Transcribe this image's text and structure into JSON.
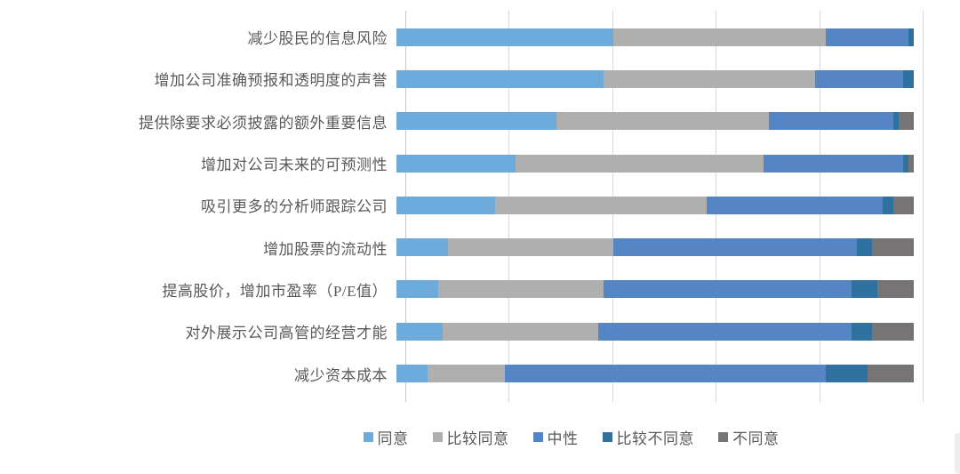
{
  "chart_data": {
    "type": "bar",
    "subtype": "horizontal-stacked-100",
    "title": "",
    "xlabel": "",
    "ylabel": "",
    "xlim": [
      0,
      100
    ],
    "gridline_interval": 20,
    "grid": true,
    "legend_position": "bottom",
    "categories": [
      "减少股民的信息风险",
      "增加公司准确预报和透明度的声誉",
      "提供除要求必须披露的额外重要信息",
      "增加对公司未来的可预测性",
      "吸引更多的分析师跟踪公司",
      "增加股票的流动性",
      "提高股价，增加市盈率（P/E值）",
      "对外展示公司高管的经营才能",
      "减少资本成本"
    ],
    "series": [
      {
        "name": "同意",
        "color": "#6cabdb",
        "values": [
          42,
          40,
          31,
          23,
          19,
          10,
          8,
          9,
          6
        ]
      },
      {
        "name": "比较同意",
        "color": "#afafaf",
        "values": [
          41,
          41,
          41,
          48,
          41,
          32,
          32,
          30,
          15
        ]
      },
      {
        "name": "中性",
        "color": "#5585c5",
        "values": [
          16,
          17,
          24,
          27,
          34,
          47,
          48,
          49,
          62
        ]
      },
      {
        "name": "比较不同意",
        "color": "#2f719f",
        "values": [
          1,
          2,
          1,
          1,
          2,
          3,
          5,
          4,
          8
        ]
      },
      {
        "name": "不同意",
        "color": "#767474",
        "values": [
          0,
          0,
          3,
          1,
          4,
          8,
          7,
          8,
          9
        ]
      }
    ]
  },
  "colors": {
    "background": "#ffffff",
    "gridline": "#d9d9d9",
    "axis_line": "#c6c6c6",
    "label_text": "#595959"
  }
}
